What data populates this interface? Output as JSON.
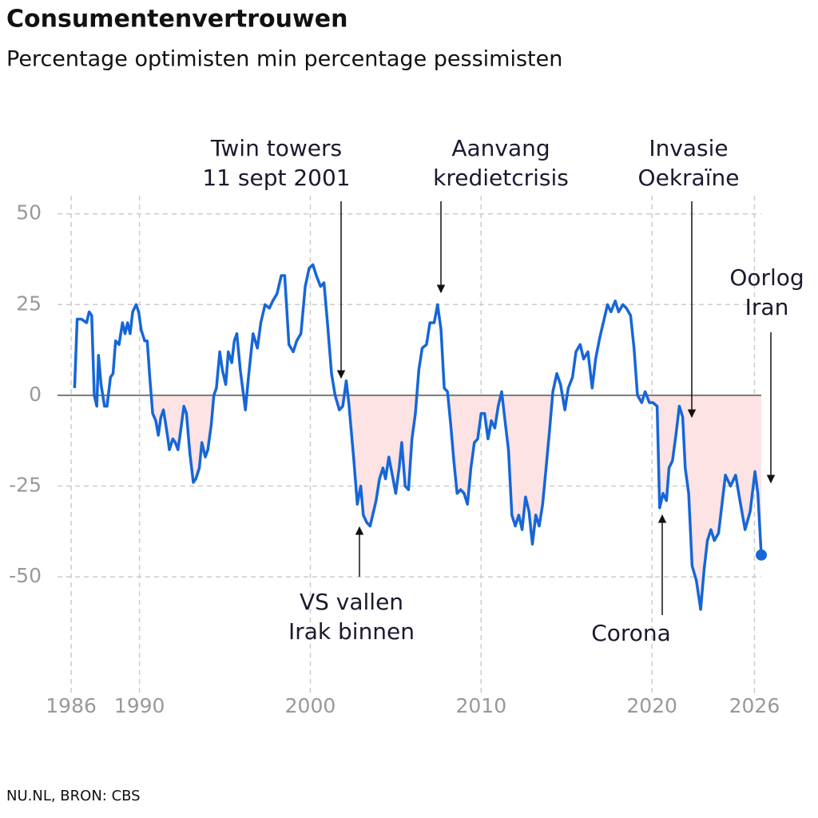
{
  "chart_data": {
    "type": "line",
    "title": "Consumentenvertrouwen",
    "subtitle": "Percentage optimisten min percentage pessimisten",
    "source": "NU.NL, BRON: CBS",
    "x": [
      1986.2,
      1986.35,
      1986.6,
      1986.9,
      1987.05,
      1987.2,
      1987.35,
      1987.5,
      1987.6,
      1987.75,
      1987.95,
      1988.1,
      1988.3,
      1988.45,
      1988.6,
      1988.8,
      1989.0,
      1989.15,
      1989.3,
      1989.45,
      1989.6,
      1989.8,
      1989.95,
      1990.1,
      1990.3,
      1990.45,
      1990.6,
      1990.77,
      1990.95,
      1991.1,
      1991.25,
      1991.4,
      1991.6,
      1991.75,
      1991.95,
      1992.1,
      1992.25,
      1992.4,
      1992.6,
      1992.75,
      1992.95,
      1993.15,
      1993.3,
      1993.5,
      1993.65,
      1993.85,
      1994.0,
      1994.2,
      1994.35,
      1994.5,
      1994.7,
      1994.85,
      1995.05,
      1995.2,
      1995.4,
      1995.55,
      1995.7,
      1995.9,
      1996.2,
      1996.4,
      1996.65,
      1996.9,
      1997.1,
      1997.35,
      1997.6,
      1997.8,
      1998.05,
      1998.3,
      1998.5,
      1998.75,
      1999.0,
      1999.2,
      1999.45,
      1999.7,
      1999.93,
      2000.15,
      2000.35,
      2000.6,
      2000.8,
      2001.0,
      2001.24,
      2001.45,
      2001.7,
      2001.9,
      2002.1,
      2002.25,
      2002.4,
      2002.55,
      2002.75,
      2002.95,
      2003.1,
      2003.3,
      2003.5,
      2003.7,
      2003.85,
      2004.05,
      2004.25,
      2004.4,
      2004.6,
      2004.8,
      2005.0,
      2005.2,
      2005.35,
      2005.55,
      2005.75,
      2005.95,
      2006.15,
      2006.35,
      2006.55,
      2006.8,
      2007.0,
      2007.25,
      2007.45,
      2007.65,
      2007.84,
      2008.03,
      2008.22,
      2008.4,
      2008.59,
      2008.8,
      2009.0,
      2009.2,
      2009.4,
      2009.6,
      2009.8,
      2010.0,
      2010.2,
      2010.4,
      2010.6,
      2010.8,
      2011.0,
      2011.2,
      2011.4,
      2011.6,
      2011.8,
      2012.0,
      2012.2,
      2012.4,
      2012.6,
      2012.8,
      2013.0,
      2013.2,
      2013.4,
      2013.6,
      2013.8,
      2014.0,
      2014.2,
      2014.43,
      2014.65,
      2014.9,
      2015.1,
      2015.35,
      2015.55,
      2015.8,
      2016.0,
      2016.25,
      2016.5,
      2016.7,
      2016.95,
      2017.15,
      2017.4,
      2017.6,
      2017.85,
      2018.05,
      2018.3,
      2018.5,
      2018.75,
      2018.95,
      2019.15,
      2019.4,
      2019.6,
      2019.85,
      2020.05,
      2020.3,
      2020.45,
      2020.65,
      2020.85,
      2021.0,
      2021.2,
      2021.4,
      2021.6,
      2021.8,
      2021.95,
      2022.15,
      2022.35,
      2022.6,
      2022.85,
      2023.05,
      2023.25,
      2023.45,
      2023.65,
      2023.9,
      2024.1,
      2024.3,
      2024.6,
      2024.9,
      2025.15,
      2025.45,
      2025.75,
      2026.03,
      2026.2,
      2026.4
    ],
    "values": [
      2,
      21,
      21,
      20,
      23,
      22,
      0,
      -3,
      11,
      3,
      -3,
      -3,
      5,
      6,
      15,
      14,
      20,
      17,
      20,
      17,
      23,
      25,
      23,
      18,
      15,
      15,
      5,
      -5,
      -7,
      -11,
      -6,
      -4,
      -10,
      -15,
      -12,
      -13,
      -15,
      -10,
      -3,
      -5,
      -16,
      -24,
      -23,
      -20,
      -13,
      -17,
      -15,
      -8,
      0,
      2,
      12,
      7,
      3,
      12,
      9,
      15,
      17,
      7,
      -4,
      6,
      17,
      13,
      20,
      25,
      24,
      26,
      28,
      33,
      33,
      14,
      12,
      15,
      17,
      30,
      35,
      36,
      33,
      30,
      31,
      20,
      6,
      0,
      -4,
      -3,
      4,
      -2,
      -10,
      -18,
      -30,
      -25,
      -33,
      -35,
      -36,
      -32,
      -29,
      -23,
      -20,
      -23,
      -17,
      -22,
      -27,
      -20,
      -13,
      -25,
      -26,
      -12,
      -5,
      7,
      13,
      14,
      20,
      20,
      25,
      18,
      2,
      1,
      -8,
      -18,
      -27,
      -26,
      -27,
      -30,
      -20,
      -13,
      -12,
      -5,
      -5,
      -12,
      -7,
      -9,
      -3,
      1,
      -7,
      -15,
      -33,
      -36,
      -33,
      -37,
      -28,
      -32,
      -41,
      -33,
      -36,
      -30,
      -20,
      -10,
      1,
      6,
      3,
      -4,
      2,
      5,
      12,
      14,
      10,
      12,
      2,
      10,
      16,
      20,
      25,
      23,
      26,
      23,
      25,
      24,
      22,
      13,
      0,
      -2,
      1,
      -2,
      -2,
      -3,
      -31,
      -27,
      -29,
      -20,
      -18,
      -11,
      -3,
      -6,
      -20,
      -27,
      -47,
      -51,
      -59,
      -48,
      -40,
      -37,
      -40,
      -38,
      -30,
      -22,
      -25,
      -22,
      -29,
      -37,
      -32,
      -21,
      -27,
      -44
    ],
    "color": "#1666d8",
    "negative_fill": "#fde3e4",
    "xlim": [
      1985.2,
      2026.4
    ],
    "ylim": [
      -83,
      55
    ],
    "xticks": [
      1986,
      1990,
      2000,
      2010,
      2020,
      2026
    ],
    "yticks": [
      50,
      25,
      0,
      -25,
      -50
    ],
    "grid": true,
    "annotations": [
      {
        "lines": [
          "Twin towers",
          "11 sept 2001"
        ]
      },
      {
        "lines": [
          "Aanvang",
          "kredietcrisis"
        ]
      },
      {
        "lines": [
          "Invasie",
          "Oekraïne"
        ]
      },
      {
        "lines": [
          "Oorlog",
          "Iran"
        ]
      },
      {
        "lines": [
          "VS vallen",
          "Irak binnen"
        ]
      },
      {
        "lines": [
          "Corona"
        ]
      }
    ]
  }
}
